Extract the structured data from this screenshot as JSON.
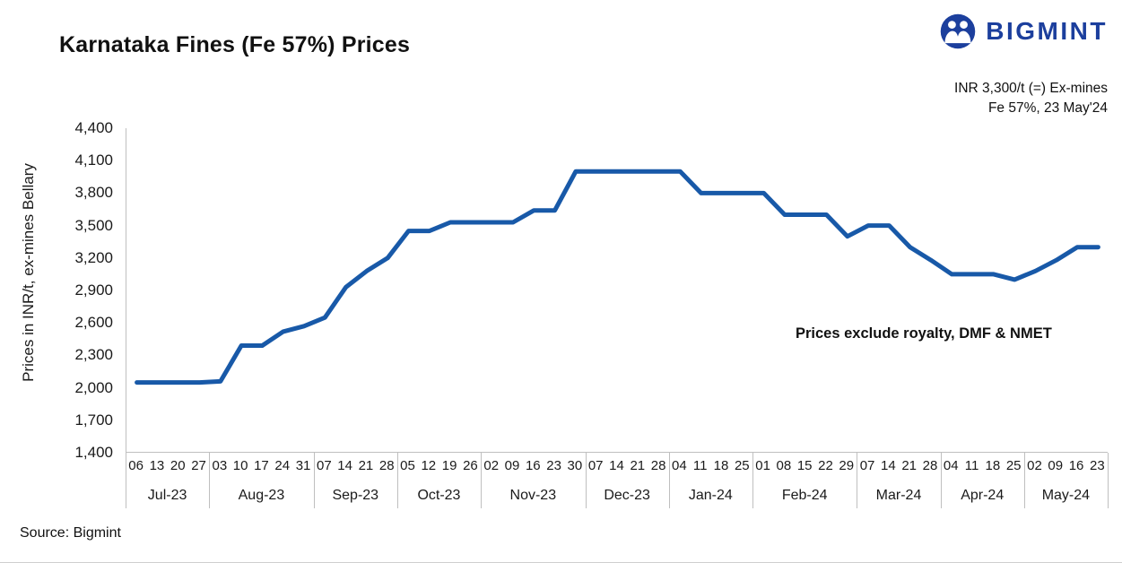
{
  "header": {
    "title": "Karnataka Fines (Fe 57%) Prices",
    "brand": "BIGMINT",
    "callout_line1": "INR 3,300/t (=) Ex-mines",
    "callout_line2": "Fe 57%, 23 May'24"
  },
  "chart_data": {
    "type": "line",
    "title": "Karnataka Fines (Fe 57%) Prices",
    "xlabel": "",
    "ylabel": "Prices in INR/t, ex-mines Bellary",
    "ylim": [
      1400,
      4400
    ],
    "ytick_step": 300,
    "yticks": [
      "4,400",
      "4,100",
      "3,800",
      "3,500",
      "3,200",
      "2,900",
      "2,600",
      "2,300",
      "2,000",
      "1,700",
      "1,400"
    ],
    "grid": false,
    "legend_position": "none",
    "annotation": "Prices exclude royalty, DMF & NMET",
    "line_color": "#1859a8",
    "months": [
      {
        "label": "Jul-23",
        "days": [
          "06",
          "13",
          "20",
          "27"
        ]
      },
      {
        "label": "Aug-23",
        "days": [
          "03",
          "10",
          "17",
          "24",
          "31"
        ]
      },
      {
        "label": "Sep-23",
        "days": [
          "07",
          "14",
          "21",
          "28"
        ]
      },
      {
        "label": "Oct-23",
        "days": [
          "05",
          "12",
          "19",
          "26"
        ]
      },
      {
        "label": "Nov-23",
        "days": [
          "02",
          "09",
          "16",
          "23",
          "30"
        ]
      },
      {
        "label": "Dec-23",
        "days": [
          "07",
          "14",
          "21",
          "28"
        ]
      },
      {
        "label": "Jan-24",
        "days": [
          "04",
          "11",
          "18",
          "25"
        ]
      },
      {
        "label": "Feb-24",
        "days": [
          "01",
          "08",
          "15",
          "22",
          "29"
        ]
      },
      {
        "label": "Mar-24",
        "days": [
          "07",
          "14",
          "21",
          "28"
        ]
      },
      {
        "label": "Apr-24",
        "days": [
          "04",
          "11",
          "18",
          "25"
        ]
      },
      {
        "label": "May-24",
        "days": [
          "02",
          "09",
          "16",
          "23"
        ]
      }
    ],
    "values": [
      2050,
      2050,
      2050,
      2050,
      2060,
      2390,
      2390,
      2520,
      2570,
      2650,
      2930,
      3080,
      3200,
      3450,
      3450,
      3530,
      3530,
      3530,
      3530,
      3640,
      3640,
      4000,
      4000,
      4000,
      4000,
      4000,
      4000,
      3800,
      3800,
      3800,
      3800,
      3600,
      3600,
      3600,
      3400,
      3500,
      3500,
      3300,
      3180,
      3050,
      3050,
      3050,
      3000,
      3080,
      3180,
      3300,
      3300
    ]
  },
  "footer": {
    "source": "Source: Bigmint"
  },
  "colors": {
    "brand": "#1c3f9d",
    "axis": "#bfbfbf",
    "text": "#1a1a1a"
  }
}
